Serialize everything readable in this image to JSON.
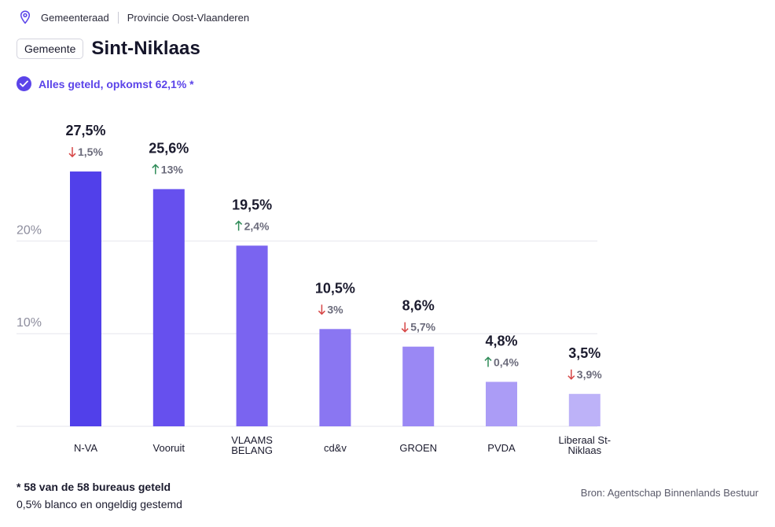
{
  "breadcrumb": {
    "level": "Gemeenteraad",
    "region": "Provincie Oost-Vlaanderen"
  },
  "header": {
    "badge": "Gemeente",
    "title": "Sint-Niklaas"
  },
  "status": {
    "text": "Alles geteld, opkomst 62,1% *"
  },
  "footer": {
    "note": "* 58 van de 58 bureaus geteld",
    "blank": "0,5% blanco en ongeldig gestemd",
    "source": "Bron: Agentschap Binnenlands Bestuur"
  },
  "colors": {
    "accent": "#5b44e9",
    "up": "#2e8b57",
    "down": "#d64545",
    "grid": "#e6e6ee",
    "axis": "#8e8e9e"
  },
  "chart_data": {
    "type": "bar",
    "title": "",
    "xlabel": "",
    "ylabel": "",
    "ylim": [
      0,
      31
    ],
    "yticks": [
      10,
      20
    ],
    "ytick_labels": [
      "10%",
      "20%"
    ],
    "grid": true,
    "categories": [
      "N-VA",
      "Vooruit",
      "VLAAMS BELANG",
      "cd&v",
      "GROEN",
      "PVDA",
      "Liberaal St-Niklaas"
    ],
    "category_lines": [
      [
        "N-VA"
      ],
      [
        "Vooruit"
      ],
      [
        "VLAAMS",
        "BELANG"
      ],
      [
        "cd&v"
      ],
      [
        "GROEN"
      ],
      [
        "PVDA"
      ],
      [
        "Liberaal St-",
        "Niklaas"
      ]
    ],
    "values": [
      27.5,
      25.6,
      19.5,
      10.5,
      8.6,
      4.8,
      3.5
    ],
    "value_labels": [
      "27,5%",
      "25,6%",
      "19,5%",
      "10,5%",
      "8,6%",
      "4,8%",
      "3,5%"
    ],
    "changes": [
      {
        "direction": "down",
        "label": "1,5%"
      },
      {
        "direction": "up",
        "label": "13%"
      },
      {
        "direction": "up",
        "label": "2,4%"
      },
      {
        "direction": "down",
        "label": "3%"
      },
      {
        "direction": "down",
        "label": "5,7%"
      },
      {
        "direction": "up",
        "label": "0,4%"
      },
      {
        "direction": "down",
        "label": "3,9%"
      }
    ],
    "bar_colors": [
      "#5140ea",
      "#6650ee",
      "#7a64f0",
      "#8a76f2",
      "#9a88f4",
      "#ab9cf6",
      "#bdb2f8"
    ]
  }
}
